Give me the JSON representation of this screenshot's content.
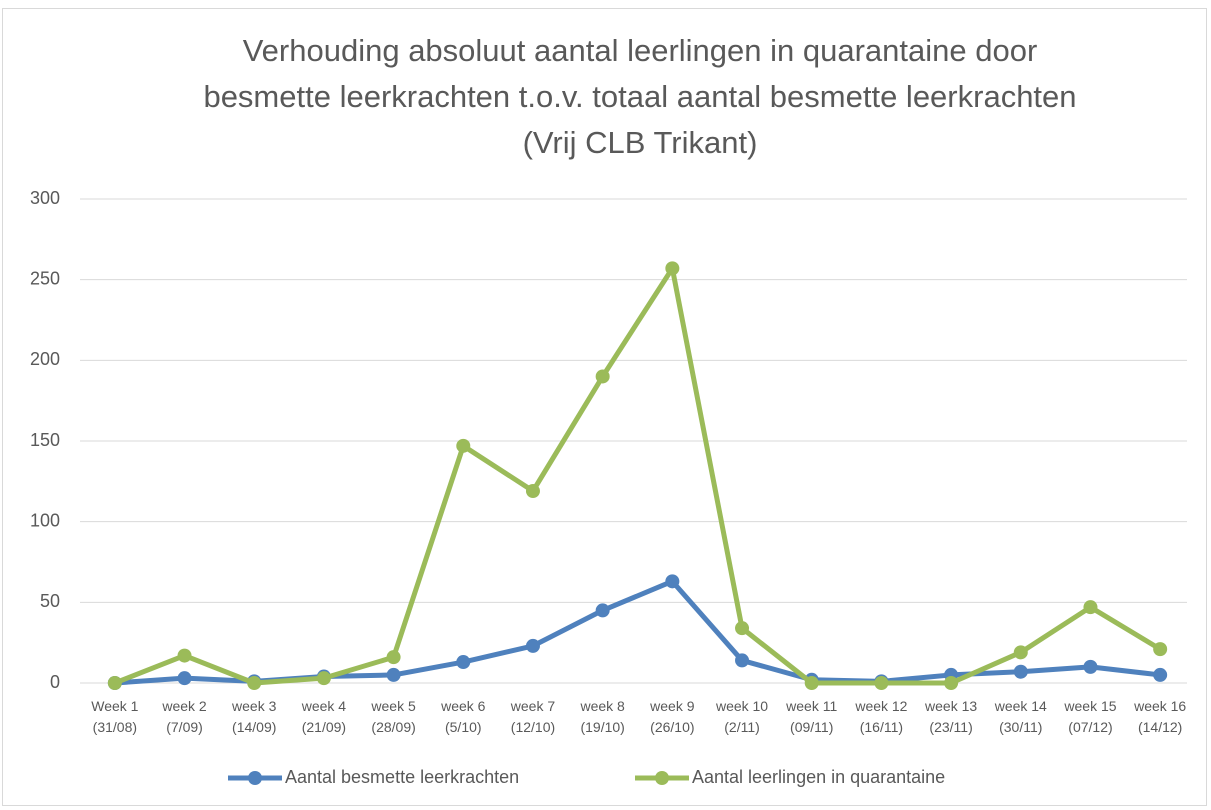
{
  "chart_data": {
    "type": "line",
    "title": "Verhouding absoluut aantal leerlingen in quarantaine door besmette leerkrachten t.o.v. totaal aantal besmette leerkrachten (Vrij CLB Trikant)",
    "categories": [
      "Week 1 (31/08)",
      "week 2 (7/09)",
      "week 3 (14/09)",
      "week 4 (21/09)",
      "week 5 (28/09)",
      "week 6 (5/10)",
      "week 7 (12/10)",
      "week 8 (19/10)",
      "week 9 (26/10)",
      "week 10 (2/11)",
      "week 11 (09/11)",
      "week 12 (16/11)",
      "week 13 (23/11)",
      "week 14 (30/11)",
      "week 15 (07/12)",
      "week 16 (14/12)"
    ],
    "series": [
      {
        "name": "Aantal besmette leerkrachten",
        "color": "#4f81bd",
        "values": [
          0,
          3,
          1,
          4,
          5,
          13,
          23,
          45,
          63,
          14,
          2,
          1,
          5,
          7,
          10,
          5
        ]
      },
      {
        "name": "Aantal leerlingen in quarantaine",
        "color": "#9bbb59",
        "values": [
          0,
          17,
          0,
          3,
          16,
          147,
          119,
          190,
          257,
          34,
          0,
          0,
          0,
          19,
          47,
          21
        ]
      }
    ],
    "ylim": [
      0,
      300
    ],
    "yticks": [
      0,
      50,
      100,
      150,
      200,
      250,
      300
    ],
    "grid": true,
    "legend": "bottom"
  }
}
